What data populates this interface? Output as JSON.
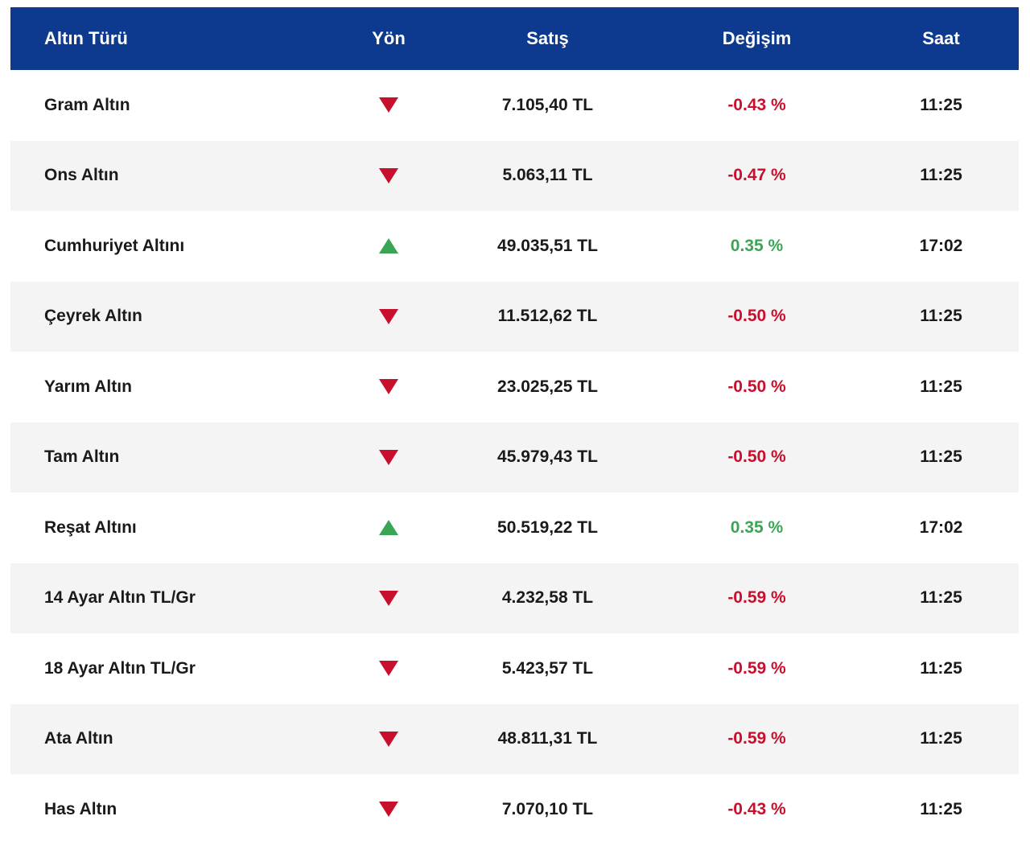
{
  "header": {
    "name": "Altın Türü",
    "direction": "Yön",
    "sell": "Satış",
    "change": "Değişim",
    "time": "Saat"
  },
  "colors": {
    "header_bg": "#0d3a8e",
    "down": "#c8102e",
    "up": "#3aa655",
    "alt_row": "#f4f4f4"
  },
  "rows": [
    {
      "name": "Gram Altın",
      "direction": "down",
      "direction_icon": "triangle-down-icon",
      "sell": "7.105,40 TL",
      "change": "-0.43 %",
      "time": "11:25"
    },
    {
      "name": "Ons Altın",
      "direction": "down",
      "direction_icon": "triangle-down-icon",
      "sell": "5.063,11 TL",
      "change": "-0.47 %",
      "time": "11:25"
    },
    {
      "name": "Cumhuriyet Altını",
      "direction": "up",
      "direction_icon": "triangle-up-icon",
      "sell": "49.035,51 TL",
      "change": "0.35 %",
      "time": "17:02"
    },
    {
      "name": "Çeyrek Altın",
      "direction": "down",
      "direction_icon": "triangle-down-icon",
      "sell": "11.512,62 TL",
      "change": "-0.50 %",
      "time": "11:25"
    },
    {
      "name": "Yarım Altın",
      "direction": "down",
      "direction_icon": "triangle-down-icon",
      "sell": "23.025,25 TL",
      "change": "-0.50 %",
      "time": "11:25"
    },
    {
      "name": "Tam Altın",
      "direction": "down",
      "direction_icon": "triangle-down-icon",
      "sell": "45.979,43 TL",
      "change": "-0.50 %",
      "time": "11:25"
    },
    {
      "name": "Reşat Altını",
      "direction": "up",
      "direction_icon": "triangle-up-icon",
      "sell": "50.519,22 TL",
      "change": "0.35 %",
      "time": "17:02"
    },
    {
      "name": "14 Ayar Altın TL/Gr",
      "direction": "down",
      "direction_icon": "triangle-down-icon",
      "sell": "4.232,58 TL",
      "change": "-0.59 %",
      "time": "11:25"
    },
    {
      "name": "18 Ayar Altın TL/Gr",
      "direction": "down",
      "direction_icon": "triangle-down-icon",
      "sell": "5.423,57 TL",
      "change": "-0.59 %",
      "time": "11:25"
    },
    {
      "name": "Ata Altın",
      "direction": "down",
      "direction_icon": "triangle-down-icon",
      "sell": "48.811,31 TL",
      "change": "-0.59 %",
      "time": "11:25"
    },
    {
      "name": "Has Altın",
      "direction": "down",
      "direction_icon": "triangle-down-icon",
      "sell": "7.070,10 TL",
      "change": "-0.43 %",
      "time": "11:25"
    }
  ]
}
